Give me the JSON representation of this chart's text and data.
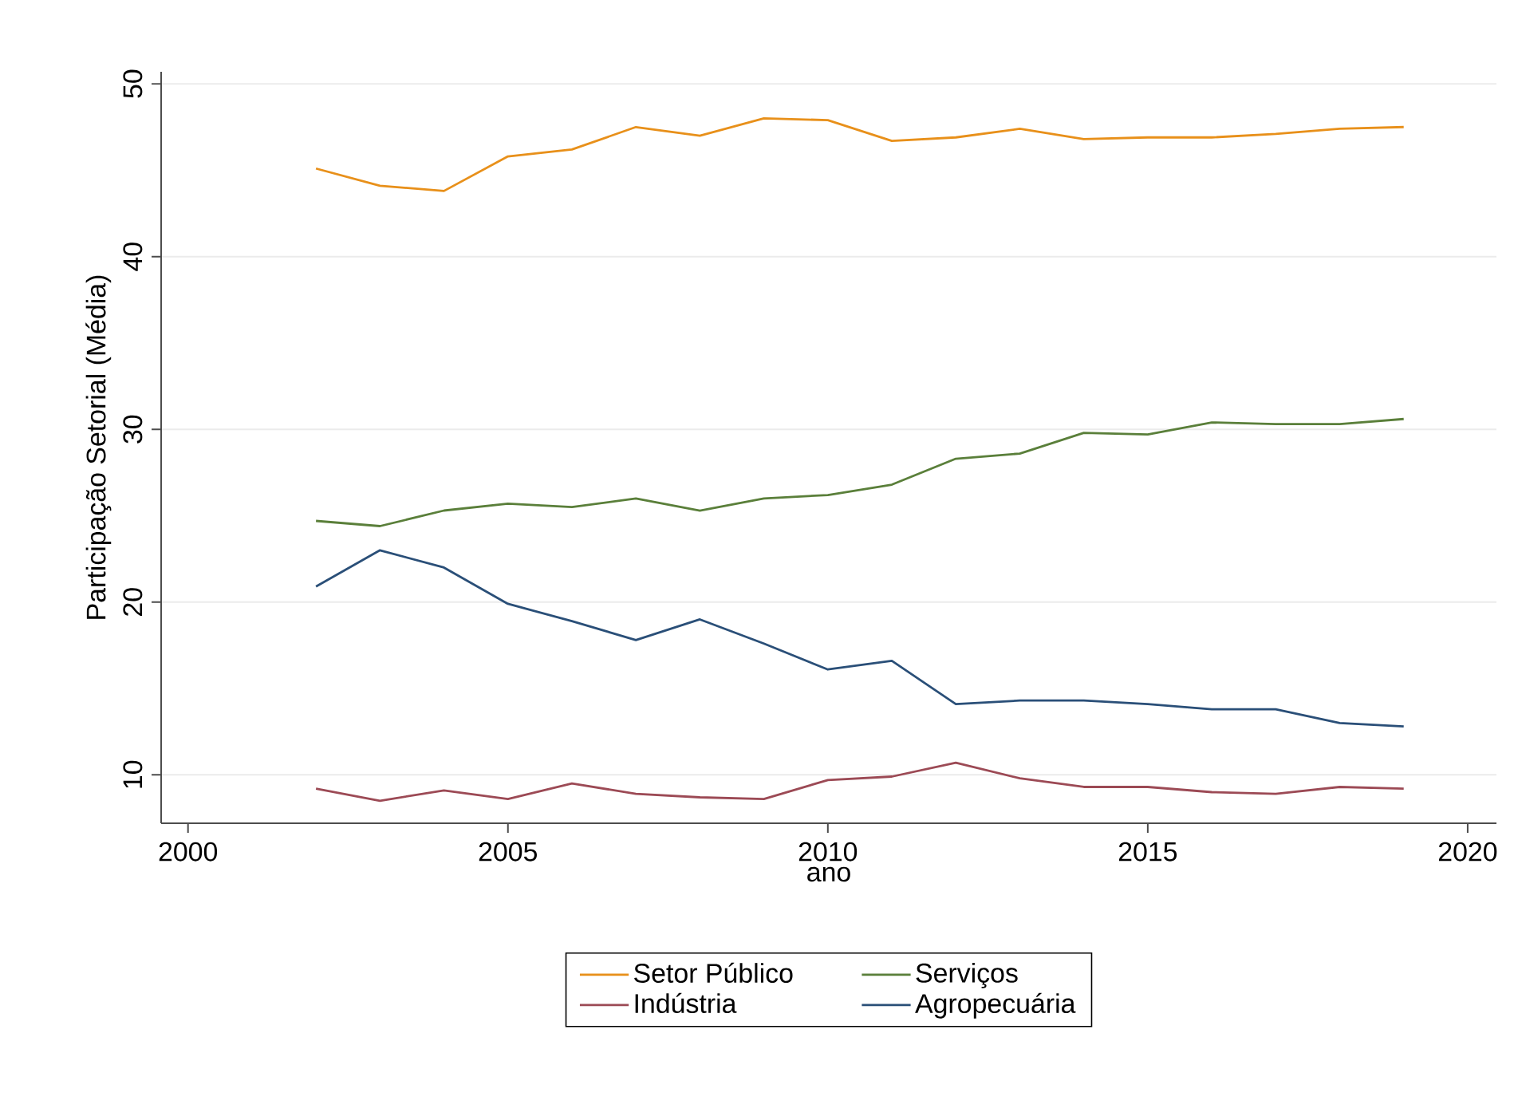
{
  "chart_data": {
    "type": "line",
    "xlabel": "ano",
    "ylabel": "Participação Setorial (Média)",
    "x": [
      2002,
      2003,
      2004,
      2005,
      2006,
      2007,
      2008,
      2009,
      2010,
      2011,
      2012,
      2013,
      2014,
      2015,
      2016,
      2017,
      2018,
      2019
    ],
    "series": [
      {
        "name": "Setor Público",
        "color": "#e8901a",
        "values": [
          45.1,
          44.1,
          43.8,
          45.8,
          46.2,
          47.5,
          47.0,
          48.0,
          47.9,
          46.7,
          46.9,
          47.4,
          46.8,
          46.9,
          46.9,
          47.1,
          47.4,
          47.5
        ]
      },
      {
        "name": "Serviços",
        "color": "#5a7f3a",
        "values": [
          24.7,
          24.4,
          25.3,
          25.7,
          25.5,
          26.0,
          25.3,
          26.0,
          26.2,
          26.8,
          28.3,
          28.6,
          29.8,
          29.7,
          30.4,
          30.3,
          30.3,
          30.6
        ]
      },
      {
        "name": "Indústria",
        "color": "#9c4a55",
        "values": [
          9.2,
          8.5,
          9.1,
          8.6,
          9.5,
          8.9,
          8.7,
          8.6,
          9.7,
          9.9,
          10.7,
          9.8,
          9.3,
          9.3,
          9.0,
          8.9,
          9.3,
          9.2
        ]
      },
      {
        "name": "Agropecuária",
        "color": "#2a4f78",
        "values": [
          20.9,
          23.0,
          22.0,
          19.9,
          18.9,
          17.8,
          19.0,
          17.6,
          16.1,
          16.6,
          14.1,
          14.3,
          14.3,
          14.1,
          13.8,
          13.8,
          13.0,
          12.8
        ]
      }
    ],
    "xlim": [
      1999.58,
      2020.45
    ],
    "ylim": [
      7.2,
      50.7
    ],
    "xticks": [
      2000,
      2005,
      2010,
      2015,
      2020
    ],
    "yticks": [
      10,
      20,
      30,
      40,
      50
    ],
    "grid": "y",
    "legend": "bottom",
    "marker": "none",
    "line_style": "solid"
  }
}
